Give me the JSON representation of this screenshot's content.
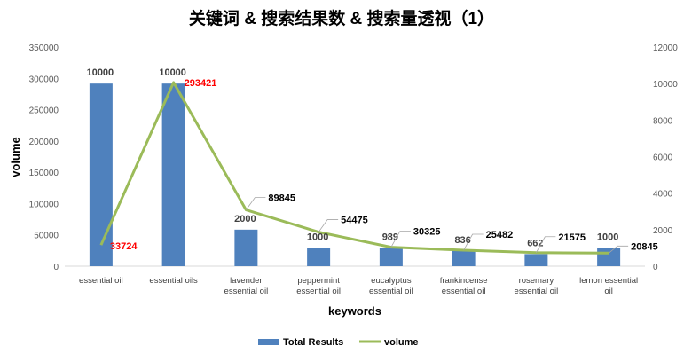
{
  "chart_data": {
    "type": "bar+line",
    "title": "关键词 & 搜索结果数 & 搜索量透视（1）",
    "xlabel": "keywords",
    "ylabel": "volume",
    "categories": [
      "essential oil",
      "essential oils",
      "lavender essential oil",
      "peppermint essential oil",
      "eucalyptus essential oil",
      "frankincense essential oil",
      "rosemary essential oil",
      "lemon essential oil"
    ],
    "category_lines": [
      [
        "essential oil"
      ],
      [
        "essential oils"
      ],
      [
        "lavender",
        "essential oil"
      ],
      [
        "peppermint",
        "essential oil"
      ],
      [
        "eucalyptus",
        "essential oil"
      ],
      [
        "frankincense",
        "essential oil"
      ],
      [
        "rosemary",
        "essential oil"
      ],
      [
        "lemon essential",
        "oil"
      ]
    ],
    "series": [
      {
        "name": "Total Results",
        "type": "bar",
        "axis": "right",
        "color": "#4f81bd",
        "values": [
          10000,
          10000,
          2000,
          1000,
          989,
          836,
          662,
          1000
        ]
      },
      {
        "name": "volume",
        "type": "line",
        "axis": "left",
        "color": "#9bbb59",
        "values": [
          33724,
          293421,
          89845,
          54475,
          30325,
          25482,
          21575,
          20845
        ]
      }
    ],
    "left_axis": {
      "range": [
        0,
        350000
      ],
      "ticks": [
        "0",
        "50000",
        "100000",
        "150000",
        "200000",
        "250000",
        "300000",
        "350000"
      ]
    },
    "right_axis": {
      "range": [
        0,
        12000
      ],
      "ticks": [
        "0",
        "2000",
        "4000",
        "6000",
        "8000",
        "10000",
        "12000"
      ]
    },
    "highlight_label_color": "#ff0000",
    "legend": {
      "position": "bottom",
      "items": [
        "Total Results",
        "volume"
      ]
    },
    "grid": false
  }
}
